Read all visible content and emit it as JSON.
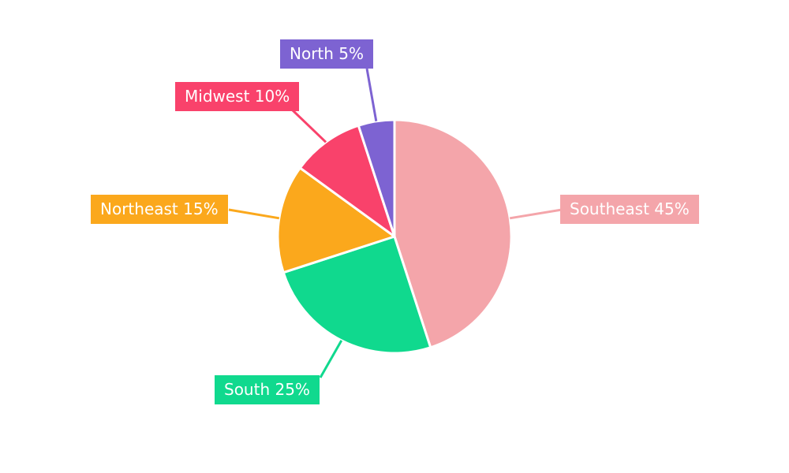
{
  "chart_data": {
    "type": "pie",
    "labels": [
      "Southeast",
      "South",
      "Northeast",
      "Midwest",
      "North"
    ],
    "values": [
      45,
      25,
      15,
      10,
      5
    ],
    "colors": [
      "#f4a5aa",
      "#10d98e",
      "#fba81c",
      "#f9426b",
      "#7d63d2"
    ],
    "start_angle_deg": -90,
    "direction": "clockwise",
    "background": "#ffffff",
    "legend_position": "callout-labels",
    "label_format": "{name} {value}%",
    "callouts": [
      {
        "text": "Southeast 45%"
      },
      {
        "text": "South 25%"
      },
      {
        "text": "Northeast 15%"
      },
      {
        "text": "Midwest 10%"
      },
      {
        "text": "North 5%"
      }
    ]
  }
}
